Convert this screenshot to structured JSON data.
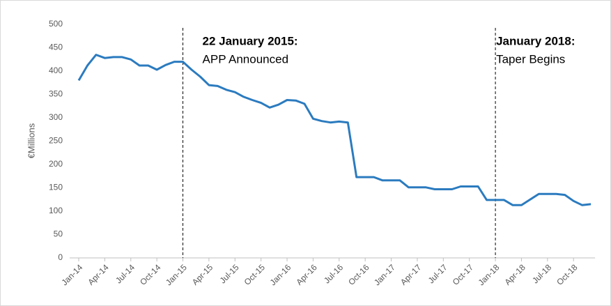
{
  "chart_data": {
    "type": "line",
    "y_label": "€Millions",
    "categories": [
      "Jan-14",
      null,
      null,
      "Apr-14",
      null,
      null,
      "Jul-14",
      null,
      null,
      "Oct-14",
      null,
      null,
      "Jan-15",
      null,
      null,
      "Apr-15",
      null,
      null,
      "Jul-15",
      null,
      null,
      "Oct-15",
      null,
      null,
      "Jan-16",
      null,
      null,
      "Apr-16",
      null,
      null,
      "Jul-16",
      null,
      null,
      "Oct-16",
      null,
      null,
      "Jan-17",
      null,
      null,
      "Apr-17",
      null,
      null,
      "Jul-17",
      null,
      null,
      "Oct-17",
      null,
      null,
      "Jan-18",
      null,
      null,
      "Apr-18",
      null,
      null,
      "Jul-18",
      null,
      null,
      "Oct-18",
      null,
      null
    ],
    "series": [
      {
        "color": "#2b7bbf",
        "values": [
          380,
          412,
          435,
          428,
          430,
          430,
          425,
          412,
          412,
          403,
          413,
          420,
          420,
          403,
          388,
          370,
          368,
          360,
          355,
          345,
          338,
          332,
          322,
          328,
          338,
          337,
          330,
          298,
          293,
          290,
          292,
          290,
          173,
          173,
          173,
          166,
          166,
          166,
          151,
          151,
          151,
          147,
          147,
          147,
          153,
          153,
          153,
          124,
          124,
          124,
          113,
          113,
          125,
          137,
          137,
          137,
          135,
          122,
          113,
          115
        ]
      }
    ],
    "ylim": [
      0,
      500
    ],
    "yticks": [
      0,
      50,
      100,
      150,
      200,
      250,
      300,
      350,
      400,
      450,
      500
    ],
    "grid": false,
    "annotations": [
      {
        "x": "Jan-15",
        "title": "22 January 2015:",
        "text": "APP Announced"
      },
      {
        "x": "Jan-18",
        "title": "January 2018:",
        "text": "Taper Begins"
      }
    ]
  }
}
